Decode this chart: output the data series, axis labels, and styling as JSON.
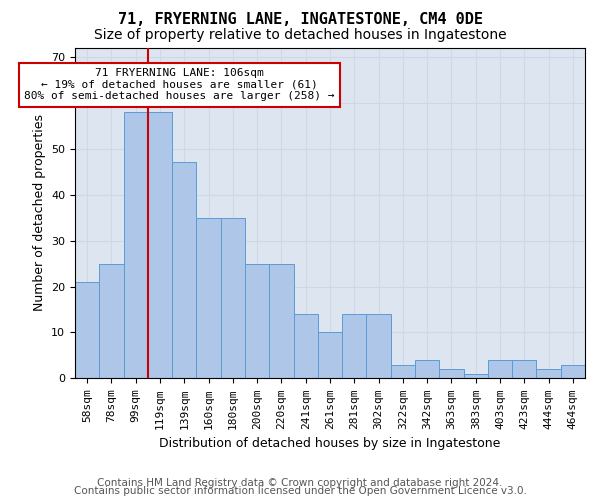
{
  "title1": "71, FRYERNING LANE, INGATESTONE, CM4 0DE",
  "title2": "Size of property relative to detached houses in Ingatestone",
  "xlabel": "Distribution of detached houses by size in Ingatestone",
  "ylabel": "Number of detached properties",
  "categories": [
    "58sqm",
    "78sqm",
    "99sqm",
    "119sqm",
    "139sqm",
    "160sqm",
    "180sqm",
    "200sqm",
    "220sqm",
    "241sqm",
    "261sqm",
    "281sqm",
    "302sqm",
    "322sqm",
    "342sqm",
    "363sqm",
    "383sqm",
    "403sqm",
    "423sqm",
    "444sqm",
    "464sqm"
  ],
  "bar_values": [
    21,
    25,
    58,
    58,
    47,
    35,
    35,
    25,
    25,
    14,
    10,
    14,
    14,
    3,
    4,
    2,
    1,
    4,
    4,
    2,
    3
  ],
  "bar_color": "#aec6e8",
  "bar_edge_color": "#5b9bd5",
  "annotation_box_text": "71 FRYERNING LANE: 106sqm\n← 19% of detached houses are smaller (61)\n80% of semi-detached houses are larger (258) →",
  "annotation_box_color": "#ffffff",
  "annotation_box_edge_color": "#cc0000",
  "annotation_line_color": "#cc0000",
  "ylim": [
    0,
    72
  ],
  "yticks": [
    0,
    10,
    20,
    30,
    40,
    50,
    60,
    70
  ],
  "grid_color": "#d0d8e8",
  "background_color": "#dde5f0",
  "footer1": "Contains HM Land Registry data © Crown copyright and database right 2024.",
  "footer2": "Contains public sector information licensed under the Open Government Licence v3.0.",
  "title1_fontsize": 11,
  "title2_fontsize": 10,
  "xlabel_fontsize": 9,
  "ylabel_fontsize": 9,
  "tick_fontsize": 8,
  "annotation_fontsize": 8,
  "footer_fontsize": 7.5
}
